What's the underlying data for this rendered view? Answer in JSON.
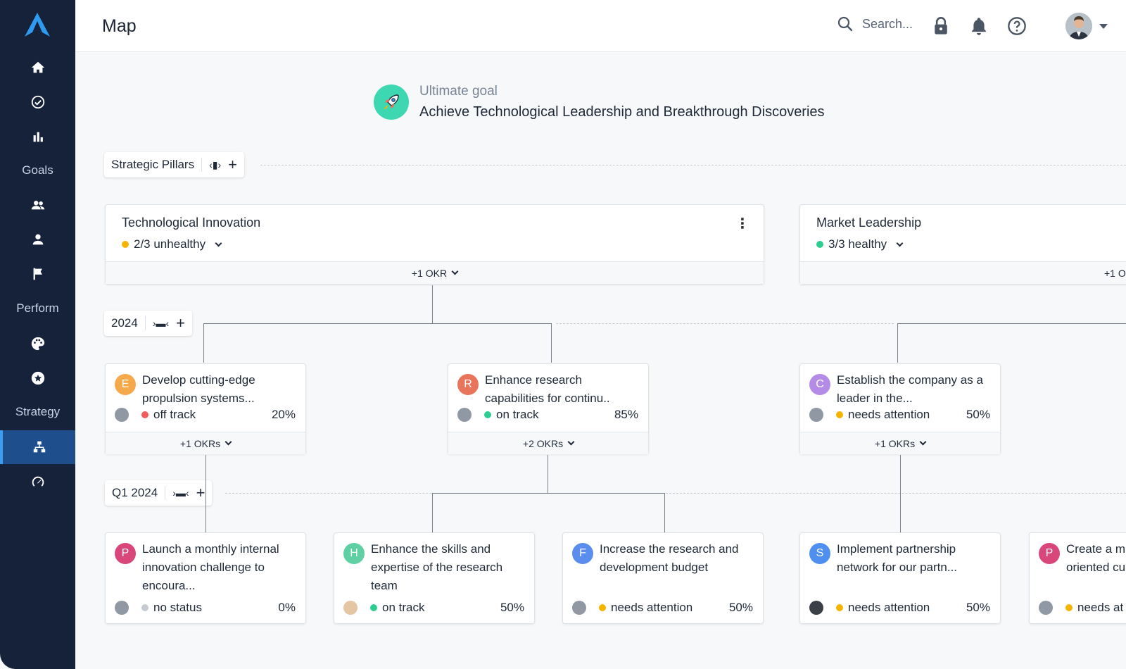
{
  "header": {
    "title": "Map",
    "search_placeholder": "Search..."
  },
  "sidebar": {
    "sections": [
      "Goals",
      "Perform",
      "Strategy"
    ],
    "icons": [
      "home-icon",
      "check-circle-icon",
      "bar-chart-icon",
      "team-icon",
      "person-icon",
      "flag-icon",
      "palette-icon",
      "star-icon",
      "hierarchy-icon",
      "gauge-icon"
    ]
  },
  "goal": {
    "label": "Ultimate goal",
    "title": "Achieve Technological Leadership and Breakthrough Discoveries"
  },
  "levels": {
    "pillars": "Strategic Pillars",
    "year": "2024",
    "quarter": "Q1 2024"
  },
  "pillars": [
    {
      "title": "Technological Innovation",
      "status": "2/3 unhealthy",
      "status_color": "#f5b400",
      "footer": "+1 OKR"
    },
    {
      "title": "Market Leadership",
      "status": "3/3 healthy",
      "status_color": "#2ecc8f",
      "footer": "+1 O"
    }
  ],
  "objectives": [
    {
      "letter": "E",
      "color": "#f6a94b",
      "title": "Develop cutting-edge propulsion systems...",
      "status": "off track",
      "status_color": "#f25c5c",
      "progress": "20%",
      "footer": "+1 OKRs"
    },
    {
      "letter": "R",
      "color": "#e8745c",
      "title": "Enhance research capabilities for continu..",
      "status": "on track",
      "status_color": "#2ecc8f",
      "progress": "85%",
      "footer": "+2 OKRs"
    },
    {
      "letter": "C",
      "color": "#b48be6",
      "title": "Establish the company as a leader in the...",
      "status": "needs attention",
      "status_color": "#f5b400",
      "progress": "50%",
      "footer": "+1 OKRs"
    }
  ],
  "key_results": [
    {
      "letter": "P",
      "color": "#d9477a",
      "title": "Launch a monthly internal innovation challenge to encoura...",
      "status": "no status",
      "status_color": "#c6cad1",
      "progress": "0%"
    },
    {
      "letter": "H",
      "color": "#5ed0a4",
      "title": "Enhance the skills and expertise of the research team",
      "status": "on track",
      "status_color": "#2ecc8f",
      "progress": "50%"
    },
    {
      "letter": "F",
      "color": "#5b8def",
      "title": "Increase the research and development budget",
      "status": "needs attention",
      "status_color": "#f5b400",
      "progress": "50%"
    },
    {
      "letter": "S",
      "color": "#4f8ff0",
      "title": "Implement partnership network for our partn...",
      "status": "needs attention",
      "status_color": "#f5b400",
      "progress": "50%"
    },
    {
      "letter": "P",
      "color": "#d9477a",
      "title": "Create a m oriented cu",
      "status": "needs at",
      "status_color": "#f5b400",
      "progress": ""
    }
  ]
}
